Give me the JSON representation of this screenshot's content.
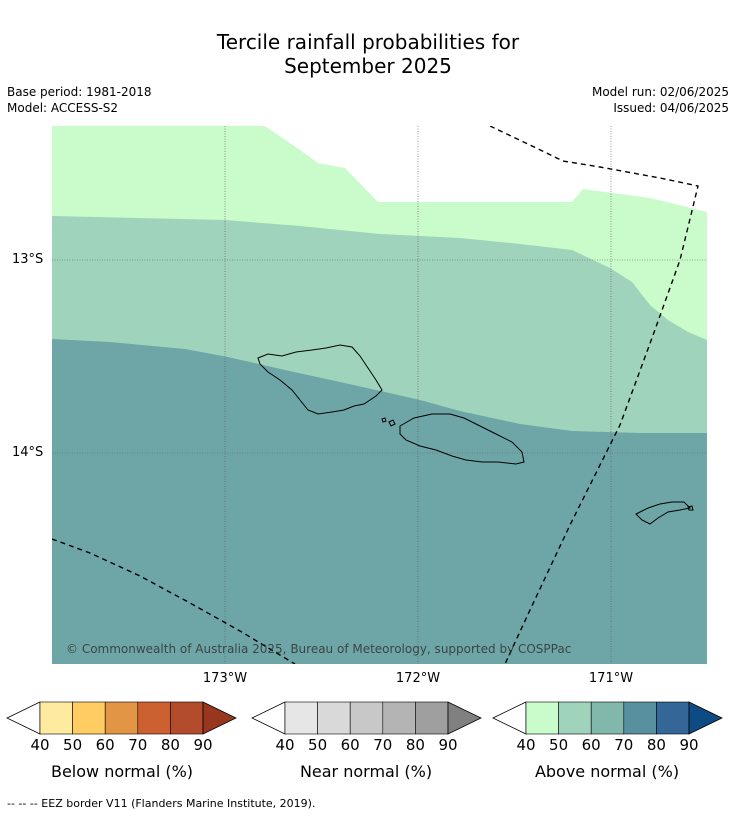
{
  "title_line1": "Tercile rainfall probabilities for",
  "title_line2": "September 2025",
  "meta": {
    "base_period": "Base period: 1981-2018",
    "model": "Model: ACCESS-S2",
    "model_run": "Model run: 02/06/2025",
    "issued": "Issued: 04/06/2025"
  },
  "map": {
    "lat_labels": [
      "13°S",
      "14°S"
    ],
    "lon_labels": [
      "173°W",
      "172°W",
      "171°W"
    ],
    "copyright": "© Commonwealth of Australia 2025, Bureau of Meteorology, supported by COSPPac",
    "colors": {
      "above_40": "#c9fcca",
      "above_50": "#a0d3bb",
      "above_60": "#6ea6a8",
      "land_outline": "#000000",
      "eez": "#000000"
    }
  },
  "colorbars": [
    {
      "label": "Below normal (%)",
      "ticks": [
        "40",
        "50",
        "60",
        "70",
        "80",
        "90"
      ],
      "colors": [
        "#ffffff",
        "#ffeb9f",
        "#fecc63",
        "#e39546",
        "#cd6031",
        "#b34c2c",
        "#99361e"
      ]
    },
    {
      "label": "Near normal (%)",
      "ticks": [
        "40",
        "50",
        "60",
        "70",
        "80",
        "90"
      ],
      "colors": [
        "#ffffff",
        "#e6e6e6",
        "#d9d9d9",
        "#c8c8c8",
        "#b4b4b4",
        "#9f9f9f",
        "#808080"
      ]
    },
    {
      "label": "Above normal (%)",
      "ticks": [
        "40",
        "50",
        "60",
        "70",
        "80",
        "90"
      ],
      "colors": [
        "#ffffff",
        "#c9fcca",
        "#a0d3bb",
        "#82b7ac",
        "#5990a0",
        "#346698",
        "#0e4a83"
      ]
    }
  ],
  "footer": "--  --  -- EEZ border V11 (Flanders Marine Institute, 2019)."
}
